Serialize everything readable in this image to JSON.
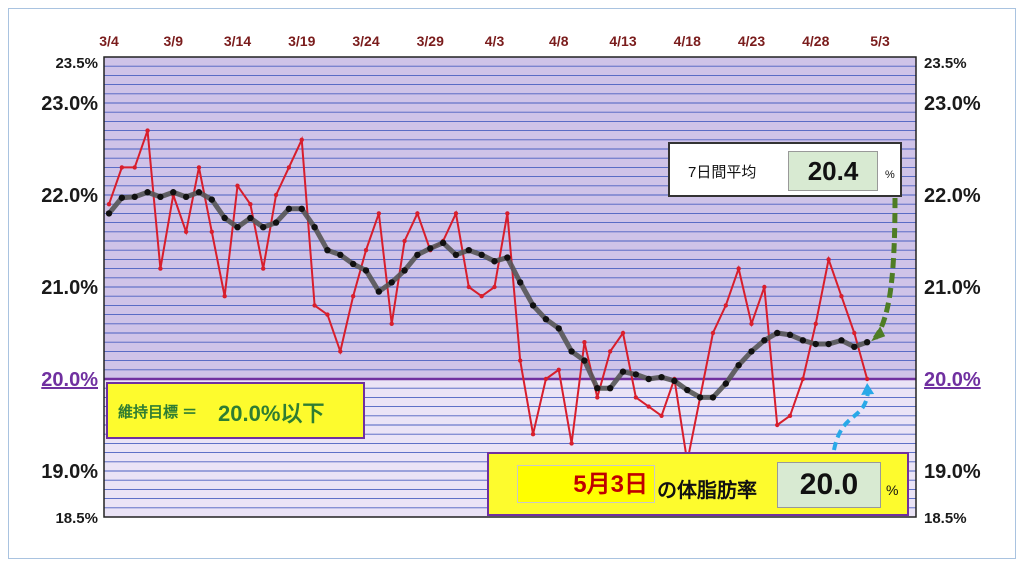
{
  "chart_data": {
    "type": "line",
    "x_tick_labels": [
      "3/4",
      "3/9",
      "3/14",
      "3/19",
      "3/24",
      "3/29",
      "4/3",
      "4/8",
      "4/13",
      "4/18",
      "4/23",
      "4/28",
      "5/3"
    ],
    "y_tick_labels": [
      "23.5%",
      "23.0%",
      "22.0%",
      "21.0%",
      "20.0%",
      "19.0%",
      "18.5%"
    ],
    "ylim": [
      18.5,
      23.5
    ],
    "goal_value": 20.0,
    "series": [
      {
        "values": [
          21.9,
          22.3,
          22.3,
          22.7,
          21.2,
          22.0,
          21.6,
          22.3,
          21.6,
          20.9,
          22.1,
          21.9,
          21.2,
          22.0,
          22.3,
          22.6,
          20.8,
          20.7,
          20.3,
          20.9,
          21.4,
          21.8,
          20.6,
          21.5,
          21.8,
          21.4,
          21.5,
          21.8,
          21.0,
          20.9,
          21.0,
          21.8,
          20.2,
          19.4,
          20.0,
          20.1,
          19.3,
          20.4,
          19.8,
          20.3,
          20.5,
          19.8,
          19.7,
          19.6,
          20.0,
          19.1,
          19.8,
          20.5,
          20.8,
          21.2,
          20.6,
          21.0,
          19.5,
          19.6,
          20.0,
          20.6,
          21.3,
          20.9,
          20.5,
          20.0
        ],
        "color": "#d81e2c"
      },
      {
        "values": [
          21.8,
          21.97,
          21.98,
          22.03,
          21.98,
          22.03,
          21.98,
          22.03,
          21.95,
          21.75,
          21.65,
          21.75,
          21.65,
          21.7,
          21.85,
          21.85,
          21.65,
          21.4,
          21.35,
          21.25,
          21.18,
          20.95,
          21.05,
          21.18,
          21.35,
          21.42,
          21.48,
          21.35,
          21.4,
          21.35,
          21.28,
          21.32,
          21.05,
          20.8,
          20.65,
          20.55,
          20.3,
          20.2,
          19.9,
          19.9,
          20.08,
          20.05,
          20.0,
          20.02,
          19.98,
          19.88,
          19.8,
          19.8,
          19.95,
          20.15,
          20.3,
          20.42,
          20.5,
          20.48,
          20.42,
          20.38,
          20.38,
          20.42,
          20.35,
          20.4
        ],
        "color": "#555555"
      }
    ]
  },
  "avg_box": {
    "label": "7日間平均",
    "value": "20.4",
    "unit": "%"
  },
  "goal_box": {
    "label": "維持目標 ＝",
    "value": "20.0%以下"
  },
  "bf_box": {
    "date": "5月3日",
    "label": "の体脂肪率",
    "value": "20.0",
    "unit": "%"
  }
}
